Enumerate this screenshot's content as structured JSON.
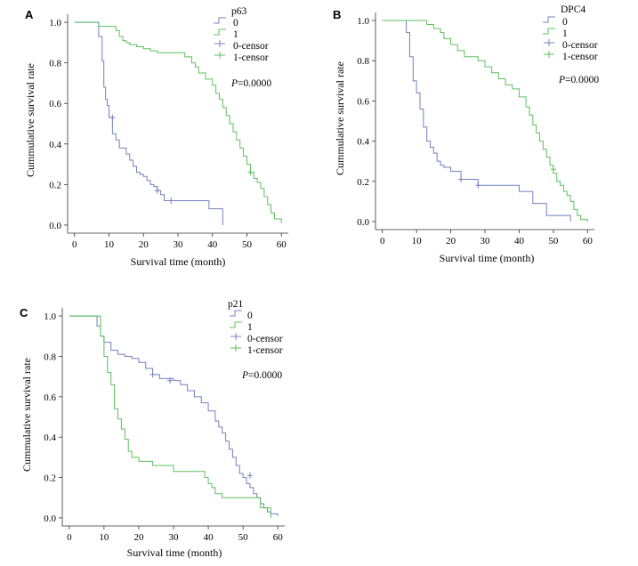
{
  "colors": {
    "group0": "#7480bf",
    "group1": "#5cc05c",
    "axis": "#333333"
  },
  "chart_data": [
    {
      "panel": "A",
      "type": "line",
      "subtype": "kaplan-meier",
      "xlabel": "Survival time (month)",
      "ylabel": "Cummulative survival rate",
      "xlim": [
        -2,
        62
      ],
      "ylim": [
        -0.04,
        1.04
      ],
      "xticks": [
        "0",
        "10",
        "20",
        "30",
        "40",
        "50",
        "60"
      ],
      "yticks": [
        "0.0",
        "0.2",
        "0.4",
        "0.6",
        "0.8",
        "1.0"
      ],
      "legend": {
        "title": "p63",
        "entries": [
          "0",
          "1",
          "0-censor",
          "1-censor"
        ],
        "position": "top-right"
      },
      "pvalue_prefix": "P",
      "pvalue_rest": "=0.0000",
      "series": [
        {
          "name": "0",
          "color": "#7480bf",
          "x": [
            0,
            6,
            7,
            8,
            8.5,
            9,
            9.5,
            10,
            11,
            12,
            13,
            14,
            15,
            16,
            17,
            18,
            19,
            20,
            21,
            22,
            23,
            24,
            25,
            26,
            30,
            33,
            36,
            39,
            43
          ],
          "y": [
            1.0,
            1.0,
            0.93,
            0.81,
            0.68,
            0.62,
            0.59,
            0.53,
            0.45,
            0.42,
            0.38,
            0.38,
            0.35,
            0.32,
            0.29,
            0.26,
            0.25,
            0.24,
            0.22,
            0.2,
            0.19,
            0.17,
            0.15,
            0.12,
            0.12,
            0.12,
            0.12,
            0.08,
            0.0
          ],
          "censors_x": [
            11,
            24,
            28
          ],
          "censors_y": [
            0.53,
            0.17,
            0.12
          ]
        },
        {
          "name": "1",
          "color": "#5cc05c",
          "x": [
            0,
            6,
            7,
            10,
            12,
            13,
            14,
            15,
            16,
            18,
            20,
            22,
            24,
            30,
            32,
            34,
            35,
            36,
            38,
            40,
            41,
            42,
            43,
            44,
            45,
            46,
            47,
            48,
            49,
            50,
            51,
            52,
            53,
            54,
            55,
            56,
            57,
            58,
            60
          ],
          "y": [
            1.0,
            1.0,
            0.98,
            0.98,
            0.96,
            0.93,
            0.91,
            0.9,
            0.89,
            0.88,
            0.87,
            0.86,
            0.85,
            0.85,
            0.83,
            0.8,
            0.78,
            0.75,
            0.72,
            0.69,
            0.65,
            0.62,
            0.58,
            0.54,
            0.5,
            0.46,
            0.42,
            0.38,
            0.34,
            0.3,
            0.26,
            0.23,
            0.21,
            0.18,
            0.14,
            0.1,
            0.06,
            0.03,
            0.01
          ],
          "censors_x": [
            51
          ],
          "censors_y": [
            0.26
          ]
        }
      ]
    },
    {
      "panel": "B",
      "type": "line",
      "subtype": "kaplan-meier",
      "xlabel": "Survival time (month)",
      "ylabel": "Cummulative survival rate",
      "xlim": [
        -2,
        62
      ],
      "ylim": [
        -0.04,
        1.04
      ],
      "xticks": [
        "0",
        "10",
        "20",
        "30",
        "40",
        "50",
        "60"
      ],
      "yticks": [
        "0.0",
        "0.2",
        "0.4",
        "0.6",
        "0.8",
        "1.0"
      ],
      "legend": {
        "title": "DPC4",
        "entries": [
          "0",
          "1",
          "0-censor",
          "1-censor"
        ],
        "position": "top-right"
      },
      "pvalue_prefix": "P",
      "pvalue_rest": "=0.0000",
      "series": [
        {
          "name": "0",
          "color": "#7480bf",
          "x": [
            0,
            6,
            7,
            8,
            9,
            10,
            11,
            12,
            13,
            14,
            15,
            16,
            17,
            18,
            20,
            23,
            28,
            30,
            35,
            40,
            44,
            48,
            55
          ],
          "y": [
            1.0,
            1.0,
            0.94,
            0.82,
            0.7,
            0.64,
            0.56,
            0.47,
            0.4,
            0.37,
            0.34,
            0.3,
            0.28,
            0.27,
            0.25,
            0.21,
            0.18,
            0.18,
            0.18,
            0.15,
            0.09,
            0.03,
            0.0
          ],
          "censors_x": [
            23,
            28
          ],
          "censors_y": [
            0.21,
            0.18
          ]
        },
        {
          "name": "1",
          "color": "#5cc05c",
          "x": [
            0,
            6,
            13,
            15,
            17,
            18,
            20,
            22,
            24,
            28,
            30,
            32,
            34,
            36,
            38,
            40,
            42,
            43,
            44,
            45,
            46,
            47,
            48,
            49,
            50,
            51,
            52,
            53,
            54,
            55,
            56,
            57,
            58,
            60
          ],
          "y": [
            1.0,
            1.0,
            0.98,
            0.96,
            0.94,
            0.91,
            0.88,
            0.85,
            0.82,
            0.8,
            0.77,
            0.74,
            0.71,
            0.68,
            0.66,
            0.62,
            0.57,
            0.53,
            0.48,
            0.44,
            0.4,
            0.36,
            0.32,
            0.28,
            0.24,
            0.2,
            0.18,
            0.15,
            0.13,
            0.1,
            0.06,
            0.03,
            0.01,
            0.0
          ],
          "censors_x": [
            50
          ],
          "censors_y": [
            0.26
          ]
        }
      ]
    },
    {
      "panel": "C",
      "type": "line",
      "subtype": "kaplan-meier",
      "xlabel": "Survival time (month)",
      "ylabel": "Cummulative survival rate",
      "xlim": [
        -2,
        62
      ],
      "ylim": [
        -0.04,
        1.04
      ],
      "xticks": [
        "0",
        "10",
        "20",
        "30",
        "40",
        "50",
        "60"
      ],
      "yticks": [
        "0.0",
        "0.2",
        "0.4",
        "0.6",
        "0.8",
        "1.0"
      ],
      "legend": {
        "title": "p21",
        "entries": [
          "0",
          "1",
          "0-censor",
          "1-censor"
        ],
        "position": "top-right"
      },
      "pvalue_prefix": "P",
      "pvalue_rest": "=0.0000",
      "series": [
        {
          "name": "0",
          "color": "#7480bf",
          "x": [
            0,
            7,
            8,
            9,
            10,
            12,
            14,
            16,
            18,
            20,
            22,
            24,
            26,
            30,
            32,
            34,
            36,
            38,
            40,
            42,
            43,
            44,
            45,
            46,
            47,
            48,
            49,
            50,
            51,
            52,
            53,
            54,
            55,
            56,
            57,
            58,
            60
          ],
          "y": [
            1.0,
            1.0,
            0.95,
            0.9,
            0.87,
            0.83,
            0.81,
            0.8,
            0.79,
            0.77,
            0.74,
            0.71,
            0.69,
            0.68,
            0.66,
            0.63,
            0.6,
            0.57,
            0.53,
            0.48,
            0.45,
            0.42,
            0.38,
            0.34,
            0.3,
            0.26,
            0.22,
            0.2,
            0.17,
            0.15,
            0.12,
            0.1,
            0.07,
            0.05,
            0.03,
            0.02,
            0.01
          ],
          "censors_x": [
            24,
            29,
            52
          ],
          "censors_y": [
            0.71,
            0.68,
            0.21
          ]
        },
        {
          "name": "1",
          "color": "#5cc05c",
          "x": [
            0,
            8,
            9,
            10,
            11,
            12,
            13,
            14,
            15,
            16,
            17,
            18,
            20,
            24,
            30,
            38,
            39,
            40,
            41,
            42,
            44,
            50,
            55,
            58
          ],
          "y": [
            1.0,
            1.0,
            0.9,
            0.8,
            0.72,
            0.66,
            0.54,
            0.49,
            0.44,
            0.39,
            0.33,
            0.3,
            0.28,
            0.26,
            0.23,
            0.23,
            0.2,
            0.17,
            0.15,
            0.12,
            0.1,
            0.1,
            0.05,
            0.0
          ],
          "censors_x": [],
          "censors_y": []
        }
      ]
    }
  ]
}
